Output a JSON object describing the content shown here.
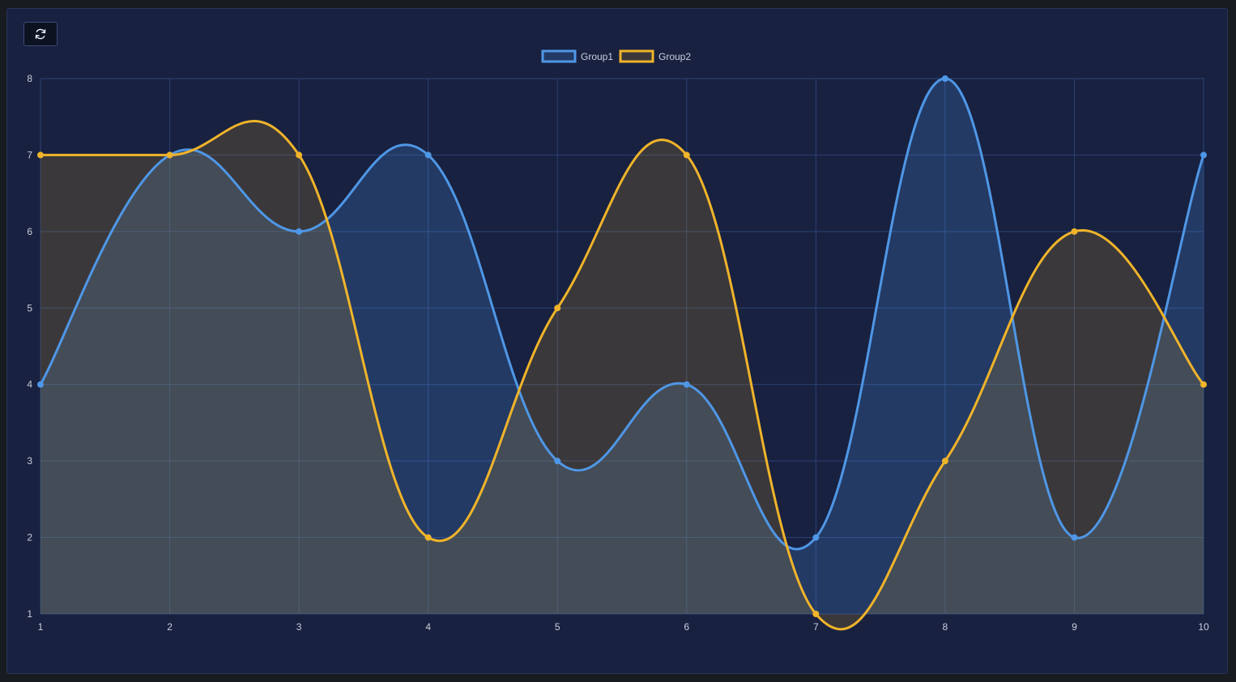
{
  "toolbar": {
    "refresh_icon": "refresh-icon"
  },
  "colors": {
    "background": "#182140",
    "grid": "#2c4274",
    "group1": "#4f97e6",
    "group2": "#f0b42a"
  },
  "chart_data": {
    "type": "area",
    "x": [
      1,
      2,
      3,
      4,
      5,
      6,
      7,
      8,
      9,
      10
    ],
    "series": [
      {
        "name": "Group1",
        "values": [
          4,
          7,
          6,
          7,
          3,
          4,
          2,
          8,
          2,
          7
        ]
      },
      {
        "name": "Group2",
        "values": [
          7,
          7,
          7,
          2,
          5,
          7,
          1,
          3,
          6,
          4
        ]
      }
    ],
    "xticks": [
      "1",
      "2",
      "3",
      "4",
      "5",
      "6",
      "7",
      "8",
      "9",
      "10"
    ],
    "yticks": [
      "1",
      "2",
      "3",
      "4",
      "5",
      "6",
      "7",
      "8"
    ],
    "ylim": [
      1,
      8
    ],
    "xlim": [
      1,
      10
    ],
    "grid": true,
    "legend": "top-center"
  }
}
